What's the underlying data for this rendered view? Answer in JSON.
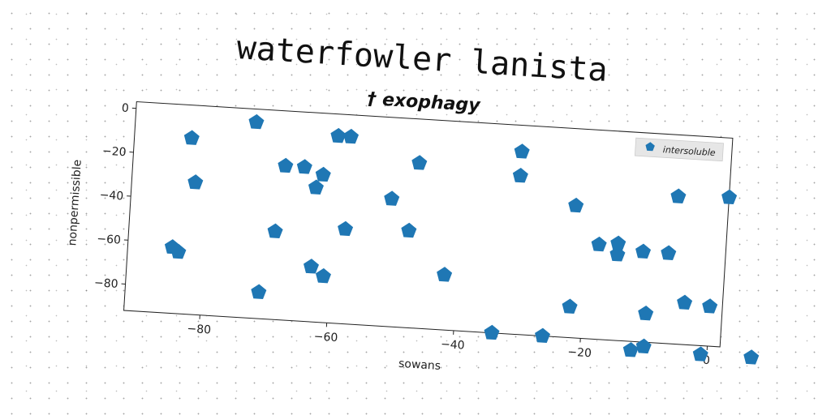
{
  "chart_data": {
    "type": "scatter",
    "title": "waterfowler lanista",
    "subtitle": "† exophagy",
    "xlabel": "sowans",
    "ylabel": "nonpermissible",
    "xlim": [
      -92,
      2
    ],
    "ylim": [
      -92,
      3
    ],
    "xticks": [
      -80,
      -60,
      -40,
      -20,
      0
    ],
    "yticks": [
      0,
      -20,
      -40,
      -60,
      -80
    ],
    "grid": false,
    "legend_position": "top-right",
    "marker": "pentagon",
    "color": "#1f77b4",
    "series": [
      {
        "name": "intersoluble",
        "points": [
          [
            -83,
            -12
          ],
          [
            -82,
            -32
          ],
          [
            -73,
            -3
          ],
          [
            -68,
            -22
          ],
          [
            -65,
            -22
          ],
          [
            -63,
            -31
          ],
          [
            -62,
            -25
          ],
          [
            -60,
            -7
          ],
          [
            -58,
            -7
          ],
          [
            -51,
            -34
          ],
          [
            -47,
            -17
          ],
          [
            -31,
            -9
          ],
          [
            -31,
            -20
          ],
          [
            -22,
            -32
          ],
          [
            -18,
            -49
          ],
          [
            -6,
            -25
          ],
          [
            2,
            -24
          ],
          [
            -85,
            -62
          ],
          [
            -84,
            -64
          ],
          [
            -69,
            -52
          ],
          [
            -58,
            -49
          ],
          [
            -48,
            -48
          ],
          [
            -63,
            -67
          ],
          [
            -61,
            -71
          ],
          [
            -71,
            -80
          ],
          [
            -42,
            -67
          ],
          [
            -11,
            -51
          ],
          [
            -15,
            -53
          ],
          [
            -15,
            -48
          ],
          [
            -7,
            -51
          ],
          [
            -22,
            -78
          ],
          [
            -10,
            -79
          ],
          [
            -4,
            -73
          ],
          [
            0,
            -74
          ],
          [
            -34,
            -92
          ],
          [
            -26,
            -92
          ],
          [
            -12,
            -96
          ],
          [
            -10,
            -94
          ],
          [
            -1,
            -96
          ],
          [
            7,
            -96
          ]
        ]
      }
    ]
  }
}
